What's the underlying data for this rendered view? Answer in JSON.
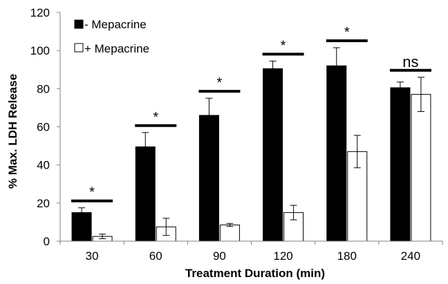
{
  "chart_data": {
    "type": "bar",
    "categories": [
      "30",
      "60",
      "90",
      "120",
      "180",
      "240"
    ],
    "series": [
      {
        "name": "- Mepacrine",
        "values": [
          15,
          49.5,
          66,
          90.5,
          92,
          80.5
        ],
        "errors": [
          2.5,
          7.5,
          9,
          4,
          9.5,
          3
        ],
        "color": "#000000"
      },
      {
        "name": "+ Mepacrine",
        "values": [
          2.5,
          7.5,
          8.5,
          15,
          47,
          77
        ],
        "errors": [
          1.2,
          4.5,
          0.8,
          3.8,
          8.5,
          9
        ],
        "color": "#ffffff"
      }
    ],
    "significance": [
      "*",
      "*",
      "*",
      "*",
      "*",
      "ns"
    ],
    "xlabel": "Treatment Duration (min)",
    "ylabel": "% Max. LDH Release",
    "ylim": [
      0,
      120
    ],
    "yticks": [
      "0",
      "20",
      "40",
      "60",
      "80",
      "100",
      "120"
    ],
    "grid": false,
    "legend_position": "top-left"
  }
}
